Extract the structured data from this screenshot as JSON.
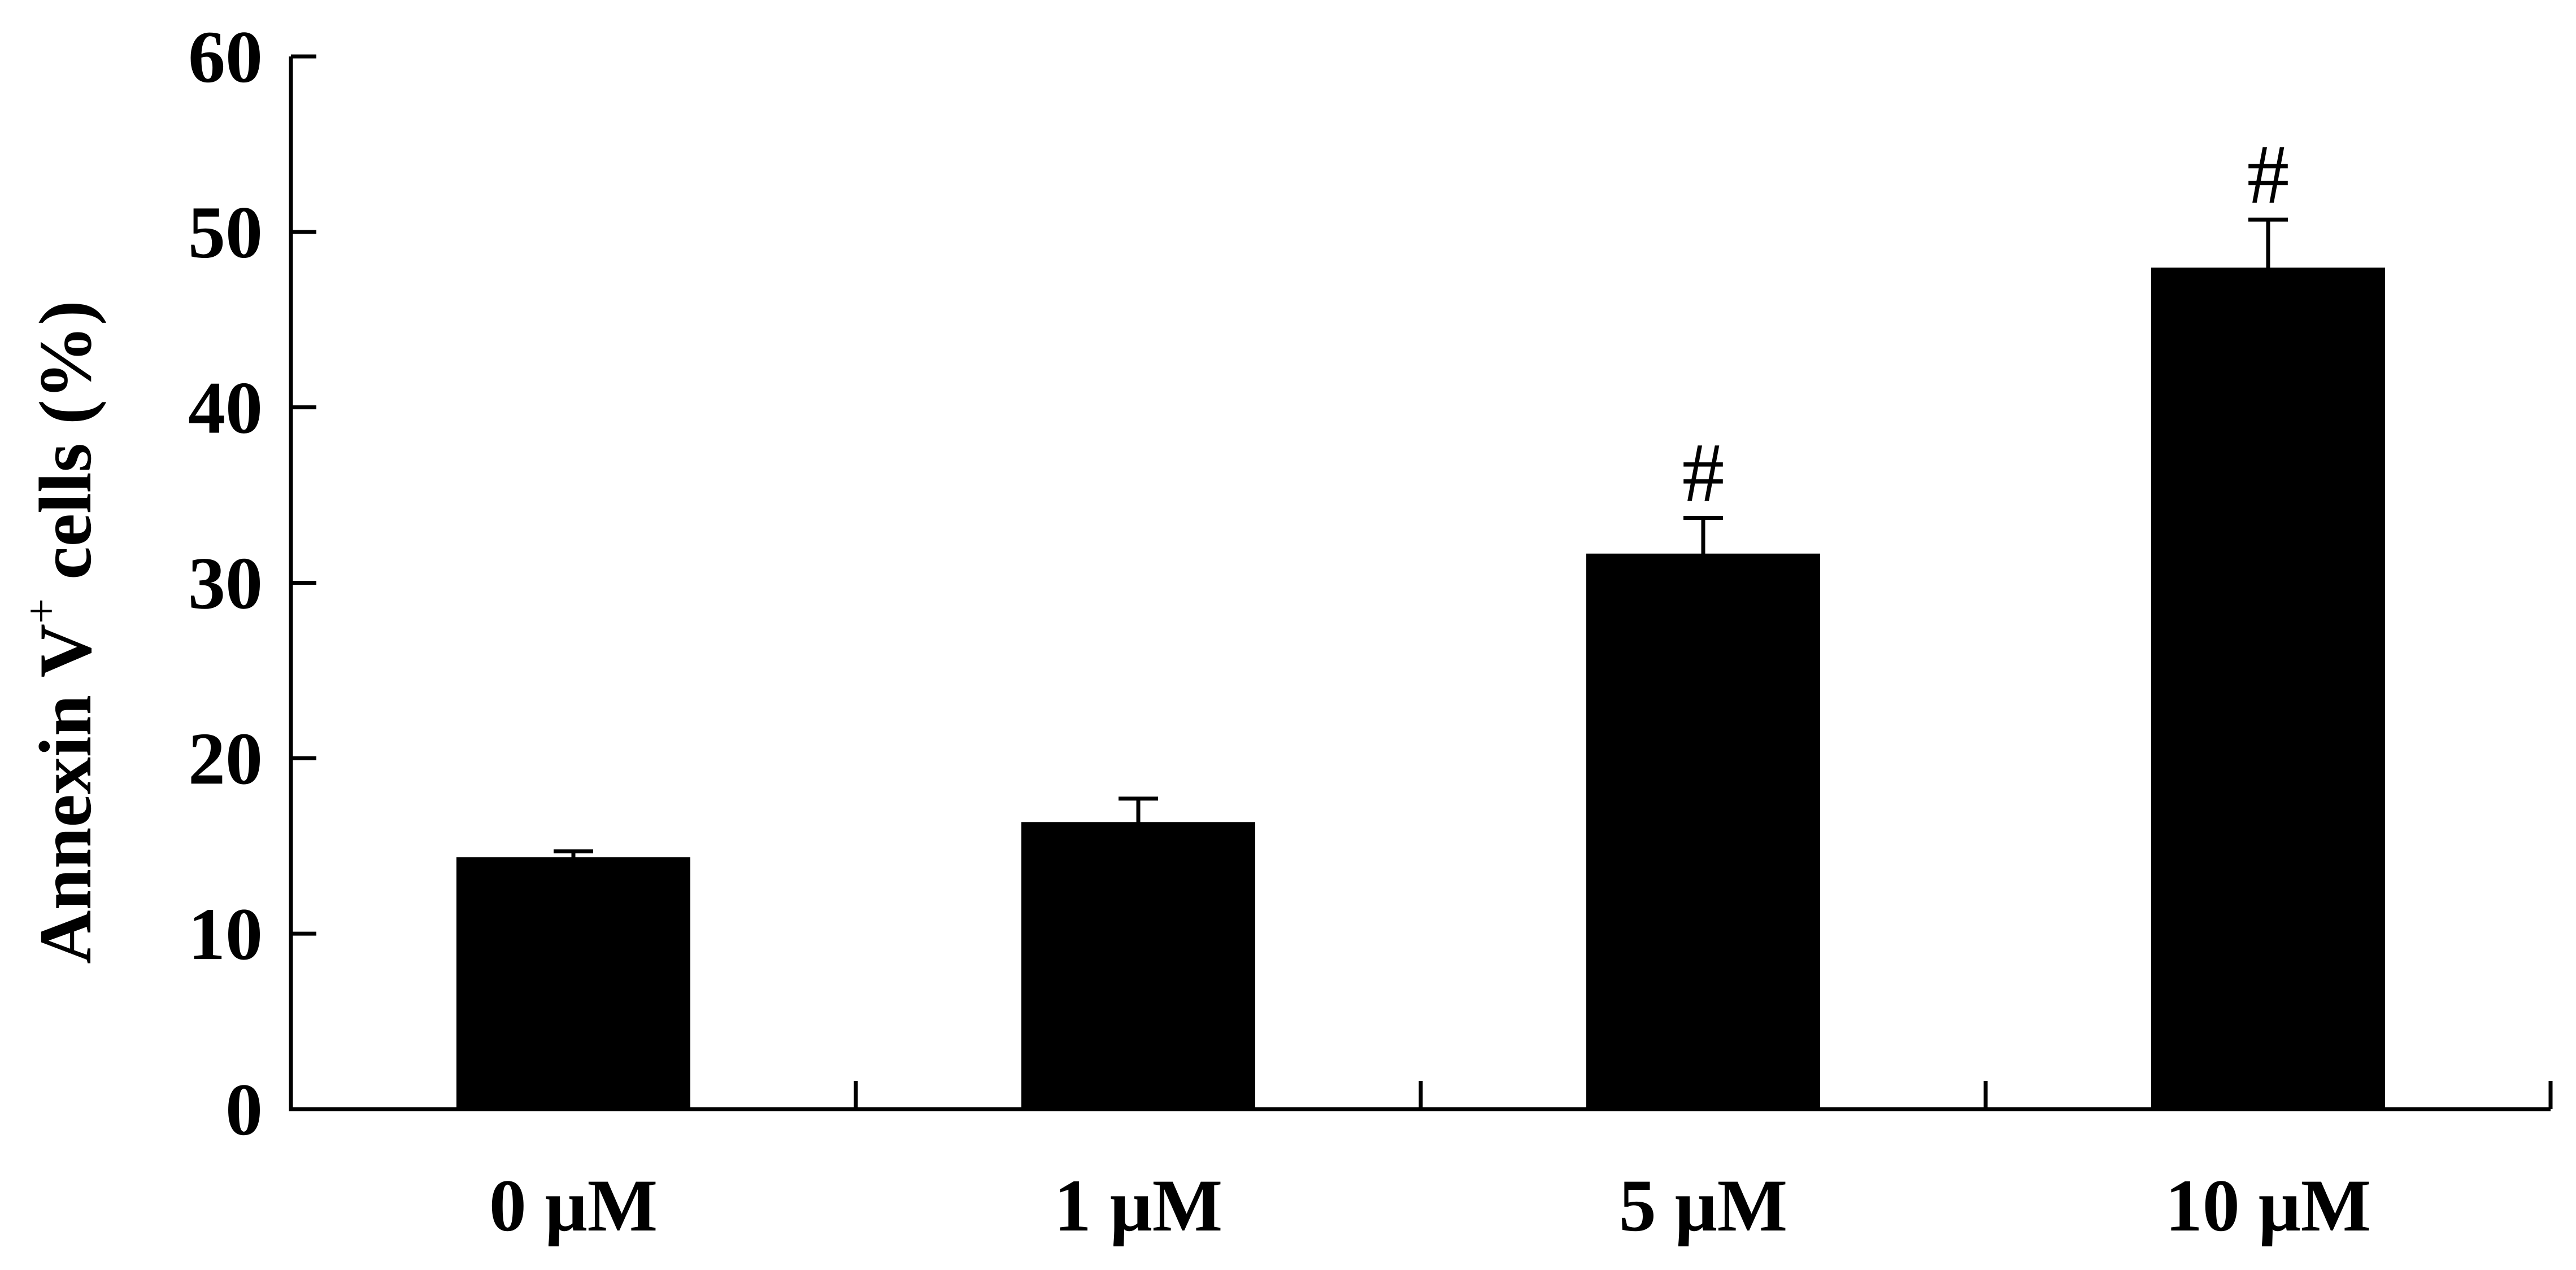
{
  "chart_data": {
    "type": "bar",
    "categories": [
      "0 μM",
      "1 μM",
      "5 μM",
      "10 μM"
    ],
    "values": [
      14.3,
      16.3,
      31.6,
      47.9
    ],
    "errors": [
      0.4,
      1.4,
      2.1,
      2.8
    ],
    "annotations": [
      "",
      "",
      "#",
      "#"
    ],
    "ylabel": "Annexin V",
    "ylabel_superscript": "+",
    "ylabel_suffix": " cells (%)",
    "ylim": [
      0,
      60
    ],
    "yticks": [
      "0",
      "10",
      "20",
      "30",
      "40",
      "50",
      "60"
    ],
    "grid": false,
    "bar_color": "#000000"
  }
}
